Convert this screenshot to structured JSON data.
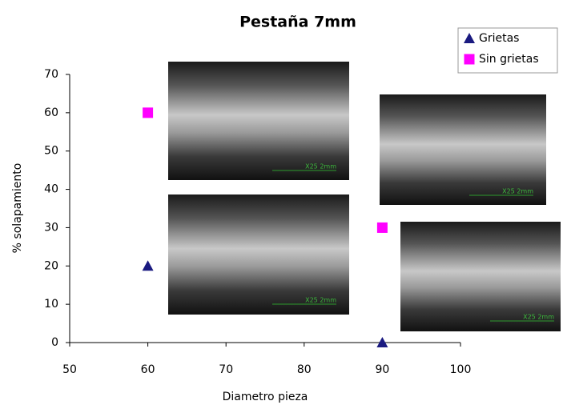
{
  "chart_data": {
    "type": "scatter",
    "title": "Pestaña 7mm",
    "x_label": "Diametro pieza",
    "y_label": "% solapamiento",
    "series": [
      {
        "name": "Grietas",
        "color": "#1a1a80",
        "marker": "triangle",
        "x": [
          60,
          90
        ],
        "values": [
          20,
          0
        ]
      },
      {
        "name": "Sin grietas",
        "color": "#ff00ff",
        "marker": "square",
        "x": [
          60,
          90
        ],
        "values": [
          60,
          30
        ]
      }
    ],
    "xlim": [
      50,
      100
    ],
    "xticks": [
      50,
      60,
      70,
      80,
      90,
      100
    ],
    "ylim": [
      0,
      70
    ],
    "yticks": [
      0,
      10,
      20,
      30,
      40,
      50,
      60,
      70
    ],
    "grid": false,
    "legend": "top-right",
    "annotations": [
      "X25 2mm",
      "X25 2mm",
      "X25 2mm",
      "X25 2mm"
    ]
  }
}
